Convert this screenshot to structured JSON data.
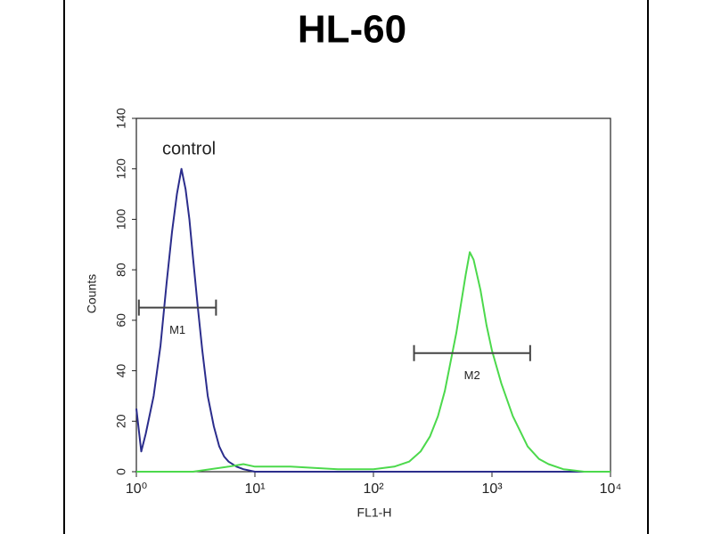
{
  "chart_data": {
    "type": "histogram-line",
    "title": "HL-60",
    "x_label": "FL1-H",
    "y_label": "Counts",
    "x_scale": "log",
    "xlim": [
      1,
      10000
    ],
    "xticks": [
      {
        "value": 1,
        "label": "10⁰"
      },
      {
        "value": 10,
        "label": "10¹"
      },
      {
        "value": 100,
        "label": "10²"
      },
      {
        "value": 1000,
        "label": "10³"
      },
      {
        "value": 10000,
        "label": "10⁴"
      }
    ],
    "ylim": [
      0,
      140
    ],
    "yticks": [
      0,
      20,
      40,
      60,
      80,
      100,
      120,
      140
    ],
    "annotations": [
      "control"
    ],
    "series": [
      {
        "color": "#2b2d8c",
        "x": [
          1.0,
          1.1,
          1.2,
          1.4,
          1.6,
          1.8,
          2.0,
          2.2,
          2.4,
          2.6,
          2.8,
          3.0,
          3.3,
          3.6,
          4.0,
          4.5,
          5,
          5.5,
          6,
          7,
          8,
          10,
          20,
          50,
          100,
          300,
          1000,
          10000
        ],
        "values": [
          25,
          8,
          15,
          30,
          50,
          75,
          95,
          110,
          120,
          112,
          100,
          85,
          65,
          48,
          30,
          18,
          10,
          6,
          4,
          2,
          1,
          0,
          0,
          0,
          0,
          0,
          0,
          0
        ]
      },
      {
        "color": "#4cd94c",
        "x": [
          1,
          3,
          6,
          8,
          10,
          20,
          50,
          100,
          150,
          200,
          250,
          300,
          350,
          400,
          500,
          600,
          650,
          700,
          800,
          900,
          1000,
          1200,
          1500,
          2000,
          2500,
          3000,
          4000,
          6000,
          10000
        ],
        "values": [
          0,
          0,
          2,
          3,
          2,
          2,
          1,
          1,
          2,
          4,
          8,
          14,
          22,
          32,
          55,
          78,
          87,
          84,
          72,
          58,
          48,
          35,
          22,
          10,
          5,
          3,
          1,
          0,
          0
        ]
      }
    ],
    "markers": [
      {
        "label": "M1",
        "x": [
          1.05,
          4.7
        ],
        "y": 65
      },
      {
        "label": "M2",
        "x": [
          220,
          2100
        ],
        "y": 47
      }
    ]
  }
}
